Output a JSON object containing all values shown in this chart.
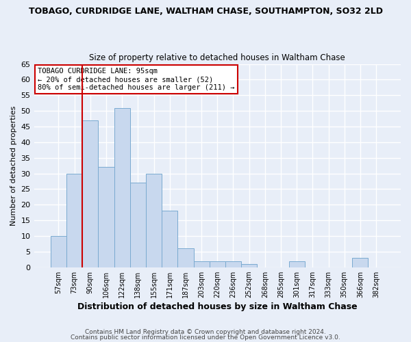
{
  "title": "TOBAGO, CURDRIDGE LANE, WALTHAM CHASE, SOUTHAMPTON, SO32 2LD",
  "subtitle": "Size of property relative to detached houses in Waltham Chase",
  "xlabel": "Distribution of detached houses by size in Waltham Chase",
  "ylabel": "Number of detached properties",
  "bin_labels": [
    "57sqm",
    "73sqm",
    "90sqm",
    "106sqm",
    "122sqm",
    "138sqm",
    "155sqm",
    "171sqm",
    "187sqm",
    "203sqm",
    "220sqm",
    "236sqm",
    "252sqm",
    "268sqm",
    "285sqm",
    "301sqm",
    "317sqm",
    "333sqm",
    "350sqm",
    "366sqm",
    "382sqm"
  ],
  "bar_heights": [
    10,
    30,
    47,
    32,
    51,
    27,
    30,
    18,
    6,
    2,
    2,
    2,
    1,
    0,
    0,
    2,
    0,
    0,
    0,
    3,
    0
  ],
  "bar_color": "#c8d8ee",
  "bar_edge_color": "#7aaad0",
  "ylim": [
    0,
    65
  ],
  "yticks": [
    0,
    5,
    10,
    15,
    20,
    25,
    30,
    35,
    40,
    45,
    50,
    55,
    60,
    65
  ],
  "vline_x": 1.5,
  "vline_color": "#cc0000",
  "annotation_title": "TOBAGO CURDRIDGE LANE: 95sqm",
  "annotation_line2": "← 20% of detached houses are smaller (52)",
  "annotation_line3": "80% of semi-detached houses are larger (211) →",
  "annotation_box_color": "#ffffff",
  "annotation_box_edge": "#cc0000",
  "footer1": "Contains HM Land Registry data © Crown copyright and database right 2024.",
  "footer2": "Contains public sector information licensed under the Open Government Licence v3.0.",
  "background_color": "#e8eef8",
  "plot_bg_color": "#e8eef8",
  "grid_color": "#ffffff"
}
